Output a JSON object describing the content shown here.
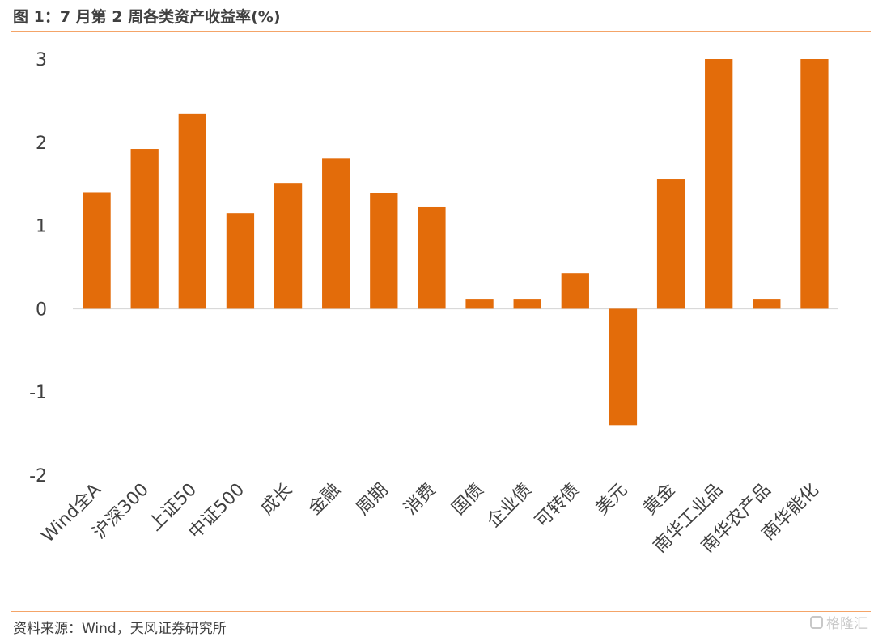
{
  "header": {
    "title": "图 1：7 月第 2 周各类资产收益率(%)"
  },
  "footer": {
    "source": "资料来源：Wind，天风证券研究所",
    "watermark": "格隆汇"
  },
  "colors": {
    "bar": "#E36C0A",
    "axis": "#D9D9D9",
    "rule": "#F4A468",
    "text": "#404040"
  },
  "chart_data": {
    "type": "bar",
    "title": "图 1：7 月第 2 周各类资产收益率(%)",
    "categories": [
      "Wind全A",
      "沪深300",
      "上证50",
      "中证500",
      "成长",
      "金融",
      "周期",
      "消费",
      "国债",
      "企业债",
      "可转债",
      "美元",
      "黄金",
      "南华工业品",
      "南华农产品",
      "南华能化"
    ],
    "values": [
      1.4,
      1.92,
      2.34,
      1.15,
      1.51,
      1.81,
      1.39,
      1.22,
      0.11,
      0.11,
      0.43,
      -1.4,
      1.56,
      3.0,
      0.11,
      3.0
    ],
    "yticks": [
      -2,
      -1,
      0,
      1,
      2,
      3
    ],
    "ylim": [
      -2,
      3
    ],
    "xlabel": "",
    "ylabel": "",
    "grid": false,
    "legend": "none"
  }
}
